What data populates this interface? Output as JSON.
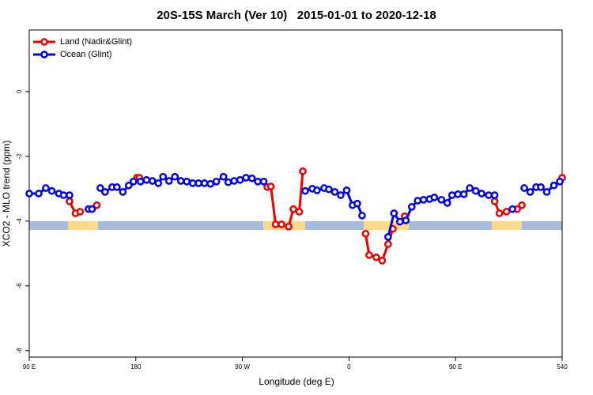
{
  "chart_data": {
    "type": "line",
    "title": "20S-15S March (Ver 10)   2015-01-01 to 2020-12-18",
    "x_label": "Longitude (deg E)",
    "y_label": "XCO2 - MLO trend (ppm)",
    "xlim": [
      90,
      540
    ],
    "ylim": [
      -8.2,
      1.9
    ],
    "xticks": [
      {
        "value": 90,
        "label": "90 E"
      },
      180,
      {
        "value": 270,
        "label": "90 W"
      },
      {
        "value": 360,
        "label": "0"
      },
      {
        "value": 450,
        "label": "90 E"
      },
      540
    ],
    "yticks": [
      0,
      -2,
      -4,
      -6,
      -8
    ],
    "legend": "top-left",
    "series": [
      {
        "name": "Land (Nadir&Glint)",
        "color": "#ee0000",
        "x": [
          124,
          129,
          133,
          null,
          147,
          null,
          181,
          183,
          null,
          291,
          294,
          298,
          303,
          309,
          313,
          318,
          321,
          null,
          374,
          377,
          383,
          388,
          393,
          397,
          null,
          407,
          null,
          483,
          487,
          493,
          null,
          502,
          506,
          null,
          540
        ],
        "values": [
          -3.39,
          -3.76,
          -3.71,
          null,
          -3.51,
          null,
          -2.66,
          -2.66,
          null,
          -2.95,
          -2.93,
          -4.1,
          -4.1,
          -4.17,
          -3.63,
          -3.71,
          -2.46,
          null,
          -4.39,
          -5.05,
          -5.12,
          -5.22,
          -4.71,
          -4.24,
          null,
          -3.85,
          null,
          -3.39,
          -3.76,
          -3.71,
          null,
          -3.63,
          -3.51,
          null,
          -2.66
        ]
      },
      {
        "name": "Ocean (Glint)",
        "color": "#0000ee",
        "x": [
          90,
          98,
          104,
          109,
          115,
          119,
          124,
          null,
          140,
          143,
          null,
          150,
          154,
          160,
          164,
          169,
          174,
          178,
          null,
          184,
          189,
          194,
          199,
          203,
          208,
          213,
          218,
          223,
          228,
          233,
          238,
          243,
          248,
          254,
          258,
          263,
          268,
          273,
          278,
          283,
          288,
          null,
          323,
          329,
          333,
          339,
          343,
          348,
          353,
          358,
          363,
          367,
          371,
          null,
          393,
          398,
          403,
          408,
          413,
          418,
          423,
          428,
          432,
          438,
          443,
          447,
          452,
          457,
          462,
          467,
          472,
          478,
          483,
          null,
          498,
          null,
          508,
          513,
          518,
          522,
          527,
          533,
          538
        ],
        "values": [
          -3.15,
          -3.15,
          -2.98,
          -3.07,
          -3.15,
          -3.2,
          -3.2,
          null,
          -3.63,
          -3.63,
          null,
          -2.98,
          -3.1,
          -2.95,
          -2.95,
          -3.1,
          -2.9,
          -2.78,
          null,
          -2.78,
          -2.73,
          -2.76,
          -2.83,
          -2.63,
          -2.76,
          -2.63,
          -2.76,
          -2.78,
          -2.83,
          -2.83,
          -2.83,
          -2.85,
          -2.78,
          -2.63,
          -2.8,
          -2.76,
          -2.73,
          -2.66,
          -2.68,
          -2.78,
          -2.78,
          null,
          -3.07,
          -3.0,
          -3.05,
          -2.98,
          -3.02,
          -3.1,
          -3.2,
          -3.05,
          -3.51,
          -3.46,
          -3.83,
          null,
          -4.49,
          -3.76,
          -4.02,
          -3.98,
          -3.56,
          -3.37,
          -3.34,
          -3.32,
          -3.27,
          -3.34,
          -3.44,
          -3.2,
          -3.17,
          -3.17,
          -2.98,
          -3.07,
          -3.15,
          -3.2,
          -3.2,
          null,
          -3.63,
          null,
          -2.98,
          -3.1,
          -2.95,
          -2.95,
          -3.1,
          -2.9,
          -2.78
        ]
      }
    ]
  }
}
